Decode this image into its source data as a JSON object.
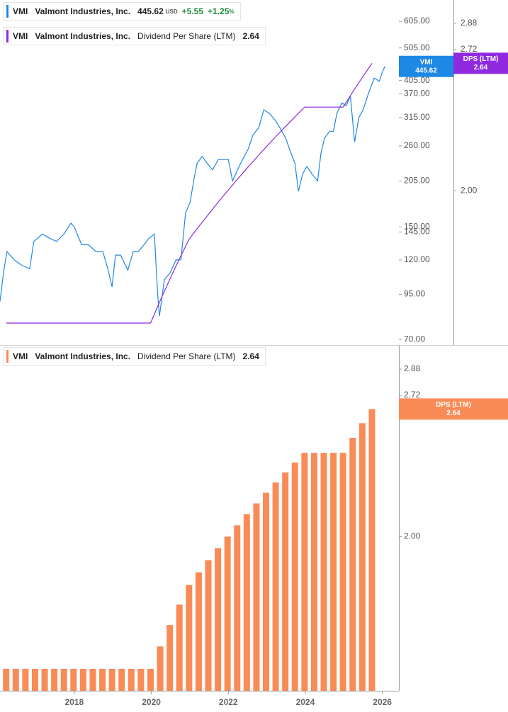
{
  "chart_data": [
    {
      "type": "line",
      "ticker": "VMI",
      "company": "Valmont Industries, Inc.",
      "currency": "USD",
      "change": "+5.55",
      "change_pct": "+1.25",
      "pct_sign": "%",
      "y_log": true,
      "y2_log": true,
      "xlim": [
        2016.07,
        2026.43
      ],
      "ylim": [
        67.4,
        699
      ],
      "yticks": [
        {
          "value": 605,
          "label": "605.00"
        },
        {
          "value": 505,
          "label": "505.00"
        },
        {
          "value": 405,
          "label": "405.00"
        },
        {
          "value": 370,
          "label": "370.00"
        },
        {
          "value": 315,
          "label": "315.00"
        },
        {
          "value": 260,
          "label": "260.00"
        },
        {
          "value": 205,
          "label": "205.00"
        },
        {
          "value": 150,
          "label": "150.00"
        },
        {
          "value": 145,
          "label": "145.00"
        },
        {
          "value": 120,
          "label": "120.00"
        },
        {
          "value": 95,
          "label": "95.00"
        },
        {
          "value": 70,
          "label": "70.00"
        }
      ],
      "y2lim": [
        1.43,
        3.03
      ],
      "y2ticks": [
        2.88,
        2.72,
        {
          "value": 2,
          "label": "2.00"
        }
      ],
      "series": [
        {
          "name": "VMI",
          "color": "#1e88e5",
          "axis": "y",
          "x": [
            2016.07,
            2016.16,
            2016.25,
            2016.44,
            2016.62,
            2016.84,
            2016.95,
            2017.17,
            2017.36,
            2017.54,
            2017.73,
            2017.91,
            2018.0,
            2018.19,
            2018.37,
            2018.56,
            2018.74,
            2018.87,
            2018.98,
            2019.07,
            2019.2,
            2019.39,
            2019.53,
            2019.66,
            2019.81,
            2019.94,
            2020.08,
            2020.16,
            2020.21,
            2020.34,
            2020.49,
            2020.64,
            2020.77,
            2020.89,
            2021.01,
            2021.1,
            2021.19,
            2021.32,
            2021.45,
            2021.59,
            2021.74,
            2021.87,
            2022.0,
            2022.11,
            2022.24,
            2022.37,
            2022.52,
            2022.64,
            2022.79,
            2022.92,
            2023.07,
            2023.22,
            2023.34,
            2023.49,
            2023.62,
            2023.73,
            2023.82,
            2023.93,
            2024.04,
            2024.17,
            2024.32,
            2024.41,
            2024.5,
            2024.63,
            2024.73,
            2024.82,
            2024.95,
            2025.06,
            2025.17,
            2025.28,
            2025.39,
            2025.5,
            2025.65,
            2025.79,
            2025.92,
            2026.01,
            2026.07
          ],
          "values": [
            90.6,
            110,
            127,
            120,
            116,
            113,
            136,
            143,
            139,
            136,
            143,
            154,
            150,
            133,
            133,
            127,
            127,
            113,
            100,
            124,
            124,
            112,
            127,
            127,
            133,
            139,
            143,
            97,
            82,
            105,
            110,
            120,
            120,
            165,
            178,
            205,
            231,
            242,
            231,
            221,
            237,
            237,
            237,
            205,
            221,
            237,
            255,
            280,
            294,
            332,
            324,
            309,
            294,
            274,
            249,
            231,
            191,
            215,
            226,
            215,
            205,
            249,
            274,
            287,
            287,
            324,
            348,
            341,
            365,
            267,
            315,
            332,
            374,
            412,
            403,
            432,
            445.62
          ]
        },
        {
          "name": "Dividend Per Share (LTM)",
          "tag_label": "DPS (LTM)",
          "color": "#8f2ae0",
          "axis": "y2",
          "x": [
            2016.23,
            2016.48,
            2016.73,
            2016.98,
            2017.23,
            2017.48,
            2017.73,
            2017.98,
            2018.23,
            2018.48,
            2018.73,
            2018.98,
            2019.23,
            2019.48,
            2019.73,
            2019.98,
            2020.23,
            2020.48,
            2020.73,
            2020.98,
            2021.23,
            2021.48,
            2021.73,
            2021.98,
            2022.23,
            2022.48,
            2022.73,
            2022.98,
            2023.23,
            2023.48,
            2023.73,
            2023.98,
            2024.23,
            2024.48,
            2024.73,
            2024.98,
            2025.23,
            2025.48,
            2025.73
          ],
          "values": [
            1.5,
            1.5,
            1.5,
            1.5,
            1.5,
            1.5,
            1.5,
            1.5,
            1.5,
            1.5,
            1.5,
            1.5,
            1.5,
            1.5,
            1.5,
            1.5,
            1.575,
            1.65,
            1.725,
            1.8,
            1.85,
            1.9,
            1.95,
            2,
            2.05,
            2.1,
            2.15,
            2.2,
            2.25,
            2.3,
            2.35,
            2.4,
            2.4,
            2.4,
            2.4,
            2.4,
            2.48,
            2.56,
            2.64
          ]
        }
      ]
    },
    {
      "type": "bar",
      "ticker": "VMI",
      "company": "Valmont Industries, Inc.",
      "y_log": true,
      "xlim": [
        2016.07,
        2026.43
      ],
      "xticks": [
        2018,
        2020,
        2022,
        2024,
        2026
      ],
      "ylim": [
        1.43,
        3.03
      ],
      "yticks": [
        2.88,
        2.72,
        {
          "value": 2,
          "label": "2.00"
        }
      ],
      "series": [
        {
          "name": "Dividend Per Share (LTM)",
          "tag_label": "DPS (LTM)",
          "color": "#f98b57",
          "x": [
            2016.23,
            2016.48,
            2016.73,
            2016.98,
            2017.23,
            2017.48,
            2017.73,
            2017.98,
            2018.23,
            2018.48,
            2018.73,
            2018.98,
            2019.23,
            2019.48,
            2019.73,
            2019.98,
            2020.23,
            2020.48,
            2020.73,
            2020.98,
            2021.23,
            2021.48,
            2021.73,
            2021.98,
            2022.23,
            2022.48,
            2022.73,
            2022.98,
            2023.23,
            2023.48,
            2023.73,
            2023.98,
            2024.23,
            2024.48,
            2024.73,
            2024.98,
            2025.23,
            2025.48,
            2025.73
          ],
          "values": [
            1.5,
            1.5,
            1.5,
            1.5,
            1.5,
            1.5,
            1.5,
            1.5,
            1.5,
            1.5,
            1.5,
            1.5,
            1.5,
            1.5,
            1.5,
            1.5,
            1.575,
            1.65,
            1.725,
            1.8,
            1.85,
            1.9,
            1.95,
            2,
            2.05,
            2.1,
            2.15,
            2.2,
            2.25,
            2.3,
            2.35,
            2.4,
            2.4,
            2.4,
            2.4,
            2.4,
            2.48,
            2.56,
            2.64
          ]
        }
      ]
    }
  ]
}
